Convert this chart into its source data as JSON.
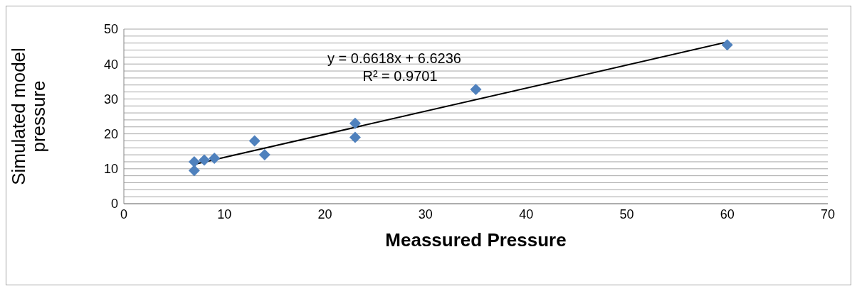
{
  "chart_data": {
    "type": "scatter",
    "xlabel": "Meassured Pressure",
    "ylabel": "Simulated model pressure",
    "marker": "diamond",
    "grid": "y",
    "legend": false,
    "xlim": [
      0,
      70
    ],
    "xticks": [
      0,
      10,
      20,
      30,
      40,
      50,
      60,
      70
    ],
    "ylim": [
      0,
      50
    ],
    "yticks": [
      0,
      {
        "value": 2,
        "label": null
      },
      {
        "value": 4,
        "label": null
      },
      {
        "value": 6,
        "label": null
      },
      {
        "value": 8,
        "label": null
      },
      10,
      {
        "value": 12,
        "label": null
      },
      {
        "value": 14,
        "label": null
      },
      {
        "value": 16,
        "label": null
      },
      {
        "value": 18,
        "label": null
      },
      20,
      {
        "value": 22,
        "label": null
      },
      {
        "value": 24,
        "label": null
      },
      {
        "value": 26,
        "label": null
      },
      {
        "value": 28,
        "label": null
      },
      30,
      {
        "value": 32,
        "label": null
      },
      {
        "value": 34,
        "label": null
      },
      {
        "value": 36,
        "label": null
      },
      {
        "value": 38,
        "label": null
      },
      40,
      {
        "value": 42,
        "label": null
      },
      {
        "value": 44,
        "label": null
      },
      {
        "value": 46,
        "label": null
      },
      {
        "value": 48,
        "label": null
      },
      50
    ],
    "annotations": [
      "y = 0.6618x + 6.6236",
      "R² = 0.9701"
    ],
    "series": [
      {
        "color": "#4f81bd",
        "x": [
          7,
          7,
          8,
          9,
          13,
          14,
          23,
          23,
          35,
          60
        ],
        "values": [
          12,
          9.5,
          12.5,
          13,
          18,
          14,
          23,
          19,
          32.7,
          45.5
        ]
      },
      {
        "type": "line",
        "color": "#000000",
        "x": [
          7,
          60
        ],
        "values": [
          11.3,
          46.3
        ],
        "marker": "none"
      }
    ]
  }
}
